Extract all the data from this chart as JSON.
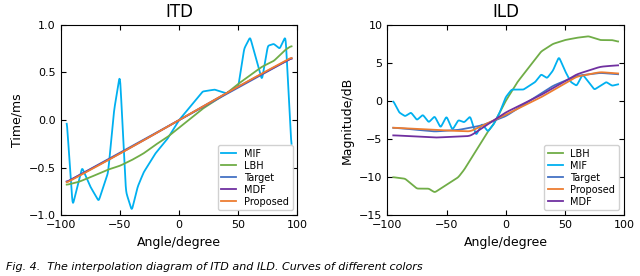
{
  "title_left": "ITD",
  "title_right": "ILD",
  "xlabel": "Angle/degree",
  "ylabel_left": "Time/ms",
  "ylabel_right": "Magnitude/dB",
  "xlim": [
    -100,
    100
  ],
  "ylim_left": [
    -1,
    1
  ],
  "ylim_right": [
    -15,
    10
  ],
  "yticks_left": [
    -1,
    -0.5,
    0,
    0.5,
    1
  ],
  "yticks_right": [
    -15,
    -10,
    -5,
    0,
    5,
    10
  ],
  "xticks": [
    -100,
    -50,
    0,
    50,
    100
  ],
  "legend_labels": [
    "Target",
    "Proposed",
    "MDF",
    "LBH",
    "MIF"
  ],
  "colors": {
    "Target": "#4472c4",
    "Proposed": "#ed7d31",
    "MDF": "#7030a0",
    "LBH": "#70ad47",
    "MIF": "#00b0f0"
  },
  "linewidths": {
    "Target": 1.3,
    "Proposed": 1.3,
    "MDF": 1.3,
    "LBH": 1.3,
    "MIF": 1.3
  },
  "caption": "Fig. 4.  The interpolation diagram of ITD and ILD. Curves of different colors"
}
